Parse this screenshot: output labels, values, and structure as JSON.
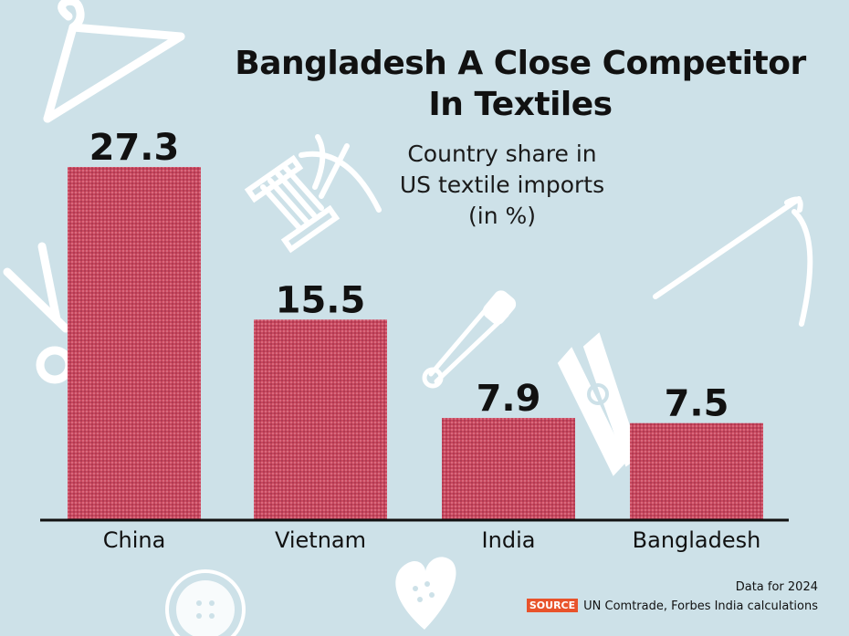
{
  "chart_data": {
    "type": "bar",
    "title": "Bangladesh A Close Competitor In Textiles",
    "title_lines": [
      "Bangladesh A Close Competitor",
      "In Textiles"
    ],
    "subtitle_lines": [
      "Country share in",
      "US textile imports",
      "(in %)"
    ],
    "categories": [
      "China",
      "Vietnam",
      "India",
      "Bangladesh"
    ],
    "values": [
      27.3,
      15.5,
      7.9,
      7.5
    ],
    "value_labels": [
      "27.3",
      "15.5",
      "7.9",
      "7.5"
    ],
    "ylim": [
      0,
      27.3
    ],
    "grid": false,
    "bar_color": "#c8485e",
    "axis_color": "#111111"
  },
  "footer": {
    "note": "Data for 2024",
    "source_badge": "SOURCE",
    "source_text": "UN Comtrade, Forbes India calculations"
  },
  "decor_icons": [
    "hanger-icon",
    "thread-spool-icon",
    "needle-icon",
    "scissors-icon",
    "safety-pin-icon",
    "clothespin-icon",
    "button-icon",
    "heart-button-icon"
  ]
}
